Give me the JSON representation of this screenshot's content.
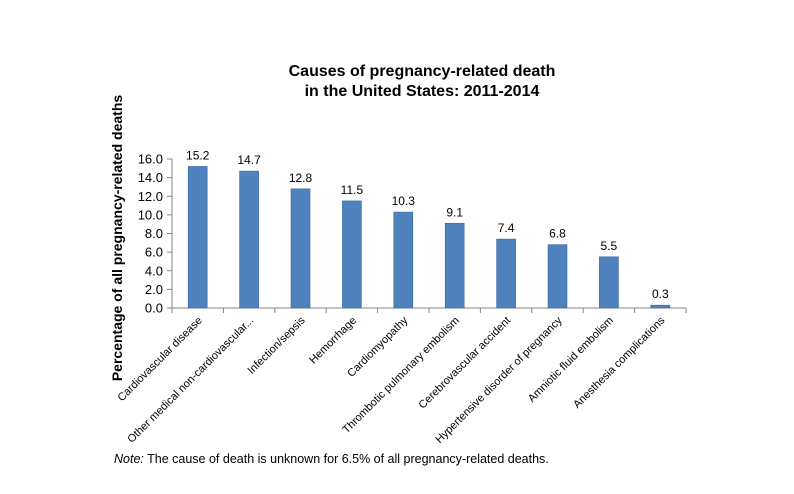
{
  "chart_data": {
    "type": "bar",
    "title_lines": [
      "Causes of pregnancy-related death",
      "in the United States: 2011-2014"
    ],
    "xlabel": "",
    "ylabel": "Percentage of all pregnancy-related deaths",
    "ylim": [
      0,
      16
    ],
    "ytick_step": 2,
    "ytick_labels": [
      "0.0",
      "2.0",
      "4.0",
      "6.0",
      "8.0",
      "10.0",
      "12.0",
      "14.0",
      "16.0"
    ],
    "categories": [
      "Cardiovascular disease",
      "Other medical non-cardiovascular...",
      "Infection/sepsis",
      "Hemorrhage",
      "Cardiomyopathy",
      "Thrombotic pulmonary embolism",
      "Cerebrovascular accident",
      "Hypertensive disorder of pregnancy",
      "Amniotic fluid embolism",
      "Anesthesia complications"
    ],
    "values": [
      15.2,
      14.7,
      12.8,
      11.5,
      10.3,
      9.1,
      7.4,
      6.8,
      5.5,
      0.3
    ],
    "data_labels": [
      "15.2",
      "14.7",
      "12.8",
      "11.5",
      "10.3",
      "9.1",
      "7.4",
      "6.8",
      "5.5",
      "0.3"
    ],
    "grid": false,
    "legend": "none",
    "bar_color": "#4F81BD",
    "bar_edge_color": "#3A6BA5",
    "axis_color": "#868686"
  },
  "note": {
    "label": "Note:",
    "text": " The cause of death is unknown for 6.5% of all pregnancy-related deaths."
  }
}
